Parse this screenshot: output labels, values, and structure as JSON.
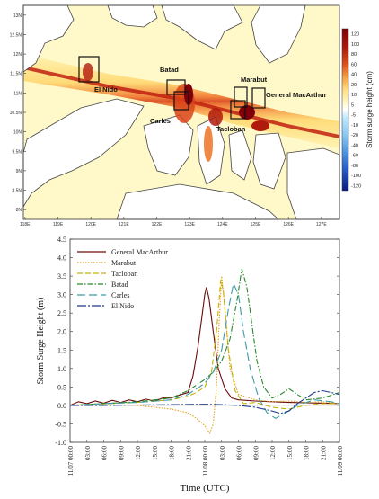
{
  "map": {
    "lat_labels": [
      "8N",
      "8.5N",
      "9N",
      "9.5N",
      "10N",
      "10.5N",
      "11N",
      "11.5N",
      "12N",
      "12.5N",
      "13N"
    ],
    "lon_labels": [
      "118E",
      "119E",
      "120E",
      "121E",
      "122E",
      "123E",
      "124E",
      "125E",
      "126E",
      "127E"
    ],
    "places": [
      "El Nido",
      "Batad",
      "Carles",
      "Marabut",
      "Tacloban",
      "General MacArthur"
    ],
    "colorbar_ticks": [
      "120",
      "100",
      "80",
      "60",
      "40",
      "20",
      "10",
      "5",
      "-5",
      "-10",
      "-20",
      "-40",
      "-60",
      "-80",
      "-100",
      "-120"
    ],
    "colorbar_label": "Storm surge height (cm)",
    "colors": {
      "land": "#ffffff",
      "coast": "#555555",
      "ramp": [
        "#fff8c8",
        "#ffeb9a",
        "#ffd870",
        "#fbb04a",
        "#f07a30",
        "#d94418",
        "#b01a0c",
        "#80000a"
      ],
      "neg": [
        "#bfe8ff",
        "#86c6f0",
        "#4f95e0",
        "#2a60cc",
        "#1434a8",
        "#0a1a80"
      ]
    }
  },
  "chart_data": {
    "type": "line",
    "x": [
      "11/07 00:00",
      "03:00",
      "06:00",
      "09:00",
      "12:00",
      "15:00",
      "18:00",
      "21:00",
      "11/08 00:00",
      "03:00",
      "06:00",
      "09:00",
      "12:00",
      "15:00",
      "18:00",
      "21:00",
      "11/09 00:00"
    ],
    "xlabel": "Time (UTC)",
    "ylabel": "Storm Surge Height (m)",
    "ylim": [
      -1.0,
      4.5
    ],
    "yticks": [
      "-1.0",
      "-0.5",
      "0.0",
      "0.5",
      "1.0",
      "1.5",
      "2.0",
      "2.5",
      "3.0",
      "3.5",
      "4.0",
      "4.5"
    ],
    "legend_position": "top-left",
    "series": [
      {
        "name": "General MacArthur",
        "color": "#6b0a0a",
        "dash": "",
        "points": [
          [
            0,
            0.0
          ],
          [
            0.5,
            0.1
          ],
          [
            1,
            0.05
          ],
          [
            1.5,
            0.12
          ],
          [
            2,
            0.06
          ],
          [
            2.5,
            0.14
          ],
          [
            3,
            0.08
          ],
          [
            3.5,
            0.15
          ],
          [
            4,
            0.1
          ],
          [
            4.5,
            0.17
          ],
          [
            5,
            0.12
          ],
          [
            5.5,
            0.2
          ],
          [
            6,
            0.2
          ],
          [
            6.5,
            0.28
          ],
          [
            7,
            0.35
          ],
          [
            7.3,
            0.8
          ],
          [
            7.6,
            1.6
          ],
          [
            7.8,
            2.3
          ],
          [
            8.0,
            3.0
          ],
          [
            8.1,
            3.2
          ],
          [
            8.25,
            2.9
          ],
          [
            8.5,
            2.0
          ],
          [
            8.8,
            1.0
          ],
          [
            9.2,
            0.45
          ],
          [
            9.6,
            0.2
          ],
          [
            10,
            0.15
          ],
          [
            11,
            0.12
          ],
          [
            12,
            0.1
          ],
          [
            13,
            0.08
          ],
          [
            14,
            0.07
          ],
          [
            15,
            0.06
          ],
          [
            16,
            0.05
          ]
        ]
      },
      {
        "name": "Marabut",
        "color": "#e0a020",
        "dash": "1.5,1.5",
        "points": [
          [
            0,
            0.0
          ],
          [
            2,
            0.02
          ],
          [
            4,
            0.0
          ],
          [
            5,
            -0.05
          ],
          [
            6,
            -0.1
          ],
          [
            7,
            -0.2
          ],
          [
            7.5,
            -0.35
          ],
          [
            8.0,
            -0.55
          ],
          [
            8.3,
            -0.75
          ],
          [
            8.5,
            -0.5
          ],
          [
            8.7,
            0.5
          ],
          [
            8.85,
            2.2
          ],
          [
            9.0,
            3.5
          ],
          [
            9.2,
            2.6
          ],
          [
            9.5,
            1.0
          ],
          [
            10,
            0.3
          ],
          [
            11,
            0.15
          ],
          [
            12,
            0.1
          ],
          [
            13,
            0.12
          ],
          [
            14,
            0.08
          ],
          [
            15,
            0.1
          ],
          [
            16,
            0.05
          ]
        ]
      },
      {
        "name": "Tacloban",
        "color": "#c8b000",
        "dash": "6,3",
        "points": [
          [
            0,
            0.0
          ],
          [
            2,
            0.05
          ],
          [
            4,
            0.08
          ],
          [
            6,
            0.15
          ],
          [
            7,
            0.25
          ],
          [
            7.5,
            0.35
          ],
          [
            8.0,
            0.5
          ],
          [
            8.4,
            0.9
          ],
          [
            8.7,
            2.0
          ],
          [
            8.95,
            3.4
          ],
          [
            9.1,
            3.1
          ],
          [
            9.4,
            1.5
          ],
          [
            9.8,
            0.4
          ],
          [
            10.3,
            0.05
          ],
          [
            11,
            0.08
          ],
          [
            12,
            -0.05
          ],
          [
            13,
            -0.1
          ],
          [
            14,
            0.0
          ],
          [
            15,
            0.05
          ],
          [
            16,
            0.05
          ]
        ]
      },
      {
        "name": "Batad",
        "color": "#2a8a2a",
        "dash": "6,2,1.5,2",
        "points": [
          [
            0,
            0.0
          ],
          [
            2,
            0.05
          ],
          [
            4,
            0.1
          ],
          [
            6,
            0.2
          ],
          [
            7,
            0.4
          ],
          [
            8,
            0.7
          ],
          [
            8.5,
            0.9
          ],
          [
            9,
            1.2
          ],
          [
            9.5,
            1.8
          ],
          [
            9.9,
            2.8
          ],
          [
            10.2,
            3.7
          ],
          [
            10.5,
            3.2
          ],
          [
            10.8,
            2.2
          ],
          [
            11.1,
            1.2
          ],
          [
            11.5,
            0.5
          ],
          [
            12,
            0.2
          ],
          [
            12.5,
            0.3
          ],
          [
            13,
            0.45
          ],
          [
            13.5,
            0.3
          ],
          [
            14,
            0.15
          ],
          [
            15,
            0.2
          ],
          [
            16,
            0.35
          ]
        ]
      },
      {
        "name": "Carles",
        "color": "#3a9aa8",
        "dash": "9,4",
        "points": [
          [
            0,
            0.0
          ],
          [
            2,
            0.05
          ],
          [
            4,
            0.08
          ],
          [
            6,
            0.15
          ],
          [
            7,
            0.3
          ],
          [
            8,
            0.6
          ],
          [
            8.5,
            0.9
          ],
          [
            9,
            1.5
          ],
          [
            9.4,
            2.6
          ],
          [
            9.7,
            3.3
          ],
          [
            10.0,
            3.0
          ],
          [
            10.3,
            2.0
          ],
          [
            10.7,
            1.0
          ],
          [
            11.2,
            0.2
          ],
          [
            11.7,
            -0.2
          ],
          [
            12.2,
            -0.35
          ],
          [
            12.8,
            -0.2
          ],
          [
            13.5,
            0.0
          ],
          [
            14.5,
            0.15
          ],
          [
            15.5,
            0.1
          ],
          [
            16,
            0.05
          ]
        ]
      },
      {
        "name": "El Nido",
        "color": "#1a3a8a",
        "dash": "10,2,2,2",
        "points": [
          [
            0,
            0.0
          ],
          [
            2,
            0.0
          ],
          [
            4,
            0.01
          ],
          [
            6,
            0.02
          ],
          [
            8,
            0.03
          ],
          [
            9,
            0.02
          ],
          [
            10,
            0.0
          ],
          [
            11,
            -0.05
          ],
          [
            11.5,
            -0.1
          ],
          [
            12,
            -0.15
          ],
          [
            12.5,
            -0.22
          ],
          [
            13,
            -0.15
          ],
          [
            13.5,
            0.05
          ],
          [
            14,
            0.2
          ],
          [
            14.5,
            0.35
          ],
          [
            15,
            0.4
          ],
          [
            15.5,
            0.35
          ],
          [
            16,
            0.3
          ]
        ]
      }
    ]
  }
}
